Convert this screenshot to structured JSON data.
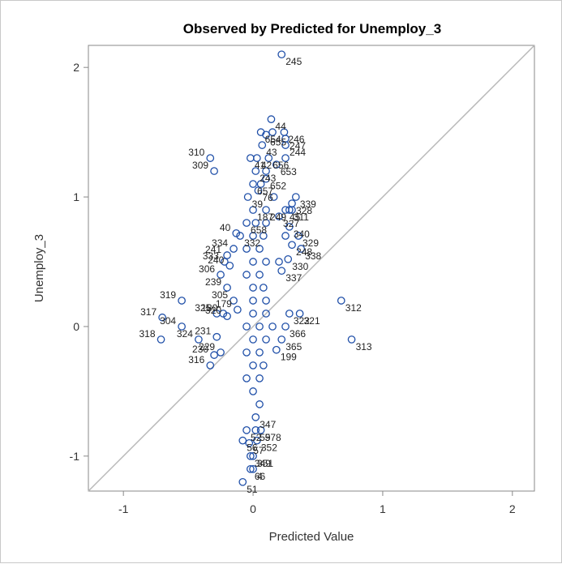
{
  "chart_data": {
    "type": "scatter",
    "title": "Observed by Predicted for Unemploy_3",
    "xlabel": "Predicted Value",
    "ylabel": "Unemploy_3",
    "xlim": [
      -1.27,
      2.17
    ],
    "ylim": [
      -1.27,
      2.17
    ],
    "xticks": [
      "-1",
      "0",
      "1",
      "2"
    ],
    "yticks": [
      "-1",
      "0",
      "1",
      "2"
    ],
    "xtick_values": [
      -1,
      0,
      1,
      2
    ],
    "ytick_values": [
      -1,
      0,
      1,
      2
    ],
    "reference_line": "y = x",
    "grid": false,
    "marker_color": "#1f4fa8",
    "line_color": "#b8b8b8",
    "points": [
      {
        "x": 0.22,
        "y": 2.1,
        "label": "245"
      },
      {
        "x": 0.14,
        "y": 1.6,
        "label": "44"
      },
      {
        "x": 0.06,
        "y": 1.5,
        "label": "654"
      },
      {
        "x": 0.15,
        "y": 1.5,
        "label": ""
      },
      {
        "x": 0.24,
        "y": 1.5,
        "label": "246"
      },
      {
        "x": 0.1,
        "y": 1.48,
        "label": "655"
      },
      {
        "x": 0.25,
        "y": 1.45,
        "label": "247"
      },
      {
        "x": 0.07,
        "y": 1.4,
        "label": "43"
      },
      {
        "x": 0.25,
        "y": 1.4,
        "label": "244"
      },
      {
        "x": -0.33,
        "y": 1.3,
        "label": "310"
      },
      {
        "x": -0.02,
        "y": 1.3,
        "label": "41"
      },
      {
        "x": 0.03,
        "y": 1.3,
        "label": "42"
      },
      {
        "x": 0.12,
        "y": 1.3,
        "label": "656"
      },
      {
        "x": 0.25,
        "y": 1.3,
        "label": ""
      },
      {
        "x": 0.18,
        "y": 1.25,
        "label": "653"
      },
      {
        "x": -0.3,
        "y": 1.2,
        "label": "309"
      },
      {
        "x": 0.02,
        "y": 1.2,
        "label": "243"
      },
      {
        "x": 0.1,
        "y": 1.2,
        "label": ""
      },
      {
        "x": 0.0,
        "y": 1.1,
        "label": "657"
      },
      {
        "x": 0.06,
        "y": 1.1,
        "label": ""
      },
      {
        "x": 0.1,
        "y": 1.14,
        "label": "652"
      },
      {
        "x": 0.33,
        "y": 1.0,
        "label": "339"
      },
      {
        "x": -0.04,
        "y": 1.0,
        "label": "39"
      },
      {
        "x": 0.04,
        "y": 1.05,
        "label": "76"
      },
      {
        "x": 0.16,
        "y": 1.0,
        "label": ""
      },
      {
        "x": 0.3,
        "y": 0.95,
        "label": "328"
      },
      {
        "x": 0.0,
        "y": 0.9,
        "label": "187"
      },
      {
        "x": 0.1,
        "y": 0.9,
        "label": "249"
      },
      {
        "x": 0.25,
        "y": 0.9,
        "label": "45"
      },
      {
        "x": 0.28,
        "y": 0.9,
        "label": "311"
      },
      {
        "x": 0.3,
        "y": 0.9,
        "label": ""
      },
      {
        "x": 0.2,
        "y": 0.85,
        "label": "327"
      },
      {
        "x": 0.28,
        "y": 0.77,
        "label": "340"
      },
      {
        "x": -0.05,
        "y": 0.8,
        "label": "658"
      },
      {
        "x": 0.02,
        "y": 0.8,
        "label": ""
      },
      {
        "x": 0.1,
        "y": 0.8,
        "label": ""
      },
      {
        "x": 0.35,
        "y": 0.7,
        "label": "329"
      },
      {
        "x": -0.13,
        "y": 0.72,
        "label": "40"
      },
      {
        "x": -0.1,
        "y": 0.7,
        "label": "332"
      },
      {
        "x": 0.0,
        "y": 0.7,
        "label": ""
      },
      {
        "x": 0.08,
        "y": 0.7,
        "label": ""
      },
      {
        "x": 0.25,
        "y": 0.7,
        "label": ""
      },
      {
        "x": 0.3,
        "y": 0.63,
        "label": "248"
      },
      {
        "x": 0.37,
        "y": 0.6,
        "label": "338"
      },
      {
        "x": -0.15,
        "y": 0.6,
        "label": "334"
      },
      {
        "x": -0.2,
        "y": 0.55,
        "label": "241"
      },
      {
        "x": -0.05,
        "y": 0.6,
        "label": ""
      },
      {
        "x": 0.05,
        "y": 0.6,
        "label": ""
      },
      {
        "x": 0.27,
        "y": 0.52,
        "label": "330"
      },
      {
        "x": -0.22,
        "y": 0.5,
        "label": "333"
      },
      {
        "x": -0.18,
        "y": 0.47,
        "label": "240"
      },
      {
        "x": 0.0,
        "y": 0.5,
        "label": ""
      },
      {
        "x": 0.1,
        "y": 0.5,
        "label": ""
      },
      {
        "x": 0.2,
        "y": 0.5,
        "label": ""
      },
      {
        "x": 0.22,
        "y": 0.43,
        "label": "337"
      },
      {
        "x": -0.25,
        "y": 0.4,
        "label": "306"
      },
      {
        "x": -0.05,
        "y": 0.4,
        "label": ""
      },
      {
        "x": 0.05,
        "y": 0.4,
        "label": ""
      },
      {
        "x": -0.2,
        "y": 0.3,
        "label": "239"
      },
      {
        "x": 0.0,
        "y": 0.3,
        "label": ""
      },
      {
        "x": 0.08,
        "y": 0.3,
        "label": ""
      },
      {
        "x": -0.55,
        "y": 0.2,
        "label": "319"
      },
      {
        "x": -0.15,
        "y": 0.2,
        "label": "305"
      },
      {
        "x": 0.68,
        "y": 0.2,
        "label": "312"
      },
      {
        "x": 0.0,
        "y": 0.2,
        "label": ""
      },
      {
        "x": 0.1,
        "y": 0.2,
        "label": ""
      },
      {
        "x": -0.12,
        "y": 0.13,
        "label": "179"
      },
      {
        "x": 0.28,
        "y": 0.1,
        "label": "322"
      },
      {
        "x": 0.36,
        "y": 0.1,
        "label": "321"
      },
      {
        "x": -0.28,
        "y": 0.1,
        "label": "325"
      },
      {
        "x": -0.23,
        "y": 0.1,
        "label": "180"
      },
      {
        "x": -0.2,
        "y": 0.08,
        "label": "320"
      },
      {
        "x": 0.0,
        "y": 0.1,
        "label": ""
      },
      {
        "x": 0.1,
        "y": 0.1,
        "label": ""
      },
      {
        "x": -0.55,
        "y": 0.0,
        "label": "304"
      },
      {
        "x": -0.7,
        "y": 0.07,
        "label": "317"
      },
      {
        "x": 0.25,
        "y": 0.0,
        "label": "366"
      },
      {
        "x": -0.05,
        "y": 0.0,
        "label": ""
      },
      {
        "x": 0.05,
        "y": 0.0,
        "label": ""
      },
      {
        "x": 0.15,
        "y": 0.0,
        "label": ""
      },
      {
        "x": 0.76,
        "y": -0.1,
        "label": "313"
      },
      {
        "x": 0.22,
        "y": -0.1,
        "label": "365"
      },
      {
        "x": -0.42,
        "y": -0.1,
        "label": "324"
      },
      {
        "x": -0.28,
        "y": -0.08,
        "label": "231"
      },
      {
        "x": -0.71,
        "y": -0.1,
        "label": "318"
      },
      {
        "x": 0.0,
        "y": -0.1,
        "label": ""
      },
      {
        "x": 0.1,
        "y": -0.1,
        "label": ""
      },
      {
        "x": 0.18,
        "y": -0.18,
        "label": "199"
      },
      {
        "x": -0.25,
        "y": -0.2,
        "label": "229"
      },
      {
        "x": -0.3,
        "y": -0.22,
        "label": "230"
      },
      {
        "x": -0.05,
        "y": -0.2,
        "label": ""
      },
      {
        "x": 0.05,
        "y": -0.2,
        "label": ""
      },
      {
        "x": -0.33,
        "y": -0.3,
        "label": "316"
      },
      {
        "x": 0.0,
        "y": -0.3,
        "label": ""
      },
      {
        "x": 0.08,
        "y": -0.3,
        "label": ""
      },
      {
        "x": -0.05,
        "y": -0.4,
        "label": ""
      },
      {
        "x": 0.05,
        "y": -0.4,
        "label": ""
      },
      {
        "x": 0.0,
        "y": -0.5,
        "label": ""
      },
      {
        "x": 0.05,
        "y": -0.6,
        "label": ""
      },
      {
        "x": 0.02,
        "y": -0.7,
        "label": "347"
      },
      {
        "x": 0.06,
        "y": -0.8,
        "label": "578"
      },
      {
        "x": 0.02,
        "y": -0.8,
        "label": "59"
      },
      {
        "x": -0.05,
        "y": -0.8,
        "label": "52"
      },
      {
        "x": -0.08,
        "y": -0.88,
        "label": "56"
      },
      {
        "x": -0.03,
        "y": -0.9,
        "label": "57"
      },
      {
        "x": 0.03,
        "y": -0.88,
        "label": "352"
      },
      {
        "x": -0.02,
        "y": -1.0,
        "label": "349"
      },
      {
        "x": 0.0,
        "y": -1.0,
        "label": "351"
      },
      {
        "x": -0.02,
        "y": -1.1,
        "label": "66"
      },
      {
        "x": 0.0,
        "y": -1.1,
        "label": "4"
      },
      {
        "x": -0.08,
        "y": -1.2,
        "label": "51"
      }
    ]
  }
}
